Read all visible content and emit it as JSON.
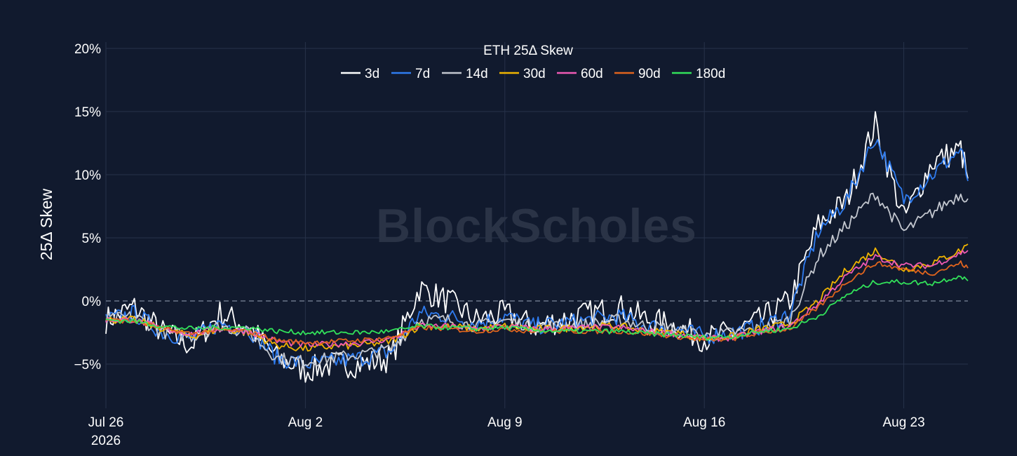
{
  "chart_data": {
    "type": "line",
    "title": "ETH 25Δ Skew",
    "ylabel": "25Δ Skew",
    "xlabel": "",
    "watermark": "BlockScholes",
    "x_range": [
      "2026-07-26",
      "2026-08-25T06:00"
    ],
    "ylim": [
      -0.085,
      0.205
    ],
    "y_ticks": [
      {
        "value": 0.2,
        "label": "20%"
      },
      {
        "value": 0.15,
        "label": "15%"
      },
      {
        "value": 0.1,
        "label": "10%"
      },
      {
        "value": 0.05,
        "label": "5%"
      },
      {
        "value": 0.0,
        "label": "0%"
      },
      {
        "value": -0.05,
        "label": "−5%"
      }
    ],
    "x_ticks": [
      {
        "date": "2026-07-26",
        "label": "Jul 26",
        "label2": "2026"
      },
      {
        "date": "2026-08-02",
        "label": "Aug 2",
        "label2": ""
      },
      {
        "date": "2026-08-09",
        "label": "Aug 9",
        "label2": ""
      },
      {
        "date": "2026-08-16",
        "label": "Aug 16",
        "label2": ""
      },
      {
        "date": "2026-08-23",
        "label": "Aug 23",
        "label2": ""
      }
    ],
    "grid": true,
    "zero_line": "dashed",
    "legend_position": "top-center",
    "series": [
      {
        "name": "3d",
        "color": "#ffffff",
        "noise": 0.011,
        "x": [
          "2026-07-26",
          "2026-07-27",
          "2026-07-28",
          "2026-07-29",
          "2026-07-30",
          "2026-07-31",
          "2026-08-01",
          "2026-08-02",
          "2026-08-03",
          "2026-08-04",
          "2026-08-05",
          "2026-08-06",
          "2026-08-07",
          "2026-08-08",
          "2026-08-09",
          "2026-08-10",
          "2026-08-11",
          "2026-08-12",
          "2026-08-13",
          "2026-08-14",
          "2026-08-15",
          "2026-08-16",
          "2026-08-17",
          "2026-08-18",
          "2026-08-19",
          "2026-08-20",
          "2026-08-21",
          "2026-08-22",
          "2026-08-23",
          "2026-08-24",
          "2026-08-25",
          "2026-08-25T06:00"
        ],
        "y": [
          -0.015,
          -0.005,
          -0.025,
          -0.035,
          -0.01,
          -0.02,
          -0.045,
          -0.055,
          -0.05,
          -0.05,
          -0.045,
          0.01,
          0.0,
          -0.015,
          -0.01,
          -0.02,
          -0.015,
          -0.01,
          -0.005,
          -0.015,
          -0.02,
          -0.03,
          -0.025,
          -0.015,
          0.0,
          0.06,
          0.08,
          0.14,
          0.065,
          0.11,
          0.12,
          0.097
        ]
      },
      {
        "name": "7d",
        "color": "#2f7cf0",
        "noise": 0.007,
        "x": [
          "2026-07-26",
          "2026-07-27",
          "2026-07-28",
          "2026-07-29",
          "2026-07-30",
          "2026-07-31",
          "2026-08-01",
          "2026-08-02",
          "2026-08-03",
          "2026-08-04",
          "2026-08-05",
          "2026-08-06",
          "2026-08-07",
          "2026-08-08",
          "2026-08-09",
          "2026-08-10",
          "2026-08-11",
          "2026-08-12",
          "2026-08-13",
          "2026-08-14",
          "2026-08-15",
          "2026-08-16",
          "2026-08-17",
          "2026-08-18",
          "2026-08-19",
          "2026-08-20",
          "2026-08-21",
          "2026-08-22",
          "2026-08-23",
          "2026-08-24",
          "2026-08-25",
          "2026-08-25T06:00"
        ],
        "y": [
          -0.015,
          -0.01,
          -0.025,
          -0.03,
          -0.018,
          -0.022,
          -0.045,
          -0.05,
          -0.048,
          -0.045,
          -0.04,
          -0.01,
          -0.012,
          -0.018,
          -0.012,
          -0.02,
          -0.018,
          -0.015,
          -0.012,
          -0.02,
          -0.022,
          -0.028,
          -0.025,
          -0.02,
          -0.01,
          0.055,
          0.08,
          0.13,
          0.08,
          0.1,
          0.12,
          0.095
        ]
      },
      {
        "name": "14d",
        "color": "#c3c7cf",
        "noise": 0.005,
        "x": [
          "2026-07-26",
          "2026-07-27",
          "2026-07-28",
          "2026-07-29",
          "2026-07-30",
          "2026-07-31",
          "2026-08-01",
          "2026-08-02",
          "2026-08-03",
          "2026-08-04",
          "2026-08-05",
          "2026-08-06",
          "2026-08-07",
          "2026-08-08",
          "2026-08-09",
          "2026-08-10",
          "2026-08-11",
          "2026-08-12",
          "2026-08-13",
          "2026-08-14",
          "2026-08-15",
          "2026-08-16",
          "2026-08-17",
          "2026-08-18",
          "2026-08-19",
          "2026-08-20",
          "2026-08-21",
          "2026-08-22",
          "2026-08-23",
          "2026-08-24",
          "2026-08-25",
          "2026-08-25T06:00"
        ],
        "y": [
          -0.015,
          -0.012,
          -0.025,
          -0.028,
          -0.02,
          -0.025,
          -0.045,
          -0.048,
          -0.045,
          -0.042,
          -0.038,
          -0.015,
          -0.015,
          -0.02,
          -0.015,
          -0.02,
          -0.02,
          -0.018,
          -0.015,
          -0.02,
          -0.022,
          -0.028,
          -0.025,
          -0.022,
          -0.015,
          0.035,
          0.06,
          0.085,
          0.055,
          0.07,
          0.085,
          0.081
        ]
      },
      {
        "name": "30d",
        "color": "#f0b400",
        "noise": 0.003,
        "x": [
          "2026-07-26",
          "2026-07-27",
          "2026-07-28",
          "2026-07-29",
          "2026-07-30",
          "2026-07-31",
          "2026-08-01",
          "2026-08-02",
          "2026-08-03",
          "2026-08-04",
          "2026-08-05",
          "2026-08-06",
          "2026-08-07",
          "2026-08-08",
          "2026-08-09",
          "2026-08-10",
          "2026-08-11",
          "2026-08-12",
          "2026-08-13",
          "2026-08-14",
          "2026-08-15",
          "2026-08-16",
          "2026-08-17",
          "2026-08-18",
          "2026-08-19",
          "2026-08-20",
          "2026-08-21",
          "2026-08-22",
          "2026-08-23",
          "2026-08-24",
          "2026-08-25",
          "2026-08-25T06:00"
        ],
        "y": [
          -0.015,
          -0.015,
          -0.022,
          -0.028,
          -0.022,
          -0.025,
          -0.035,
          -0.038,
          -0.036,
          -0.035,
          -0.032,
          -0.02,
          -0.02,
          -0.022,
          -0.02,
          -0.022,
          -0.022,
          -0.02,
          -0.02,
          -0.024,
          -0.025,
          -0.03,
          -0.028,
          -0.022,
          -0.018,
          0.0,
          0.025,
          0.04,
          0.025,
          0.03,
          0.04,
          0.045
        ]
      },
      {
        "name": "60d",
        "color": "#f05ab4",
        "noise": 0.0025,
        "x": [
          "2026-07-26",
          "2026-07-27",
          "2026-07-28",
          "2026-07-29",
          "2026-07-30",
          "2026-07-31",
          "2026-08-01",
          "2026-08-02",
          "2026-08-03",
          "2026-08-04",
          "2026-08-05",
          "2026-08-06",
          "2026-08-07",
          "2026-08-08",
          "2026-08-09",
          "2026-08-10",
          "2026-08-11",
          "2026-08-12",
          "2026-08-13",
          "2026-08-14",
          "2026-08-15",
          "2026-08-16",
          "2026-08-17",
          "2026-08-18",
          "2026-08-19",
          "2026-08-20",
          "2026-08-21",
          "2026-08-22",
          "2026-08-23",
          "2026-08-24",
          "2026-08-25",
          "2026-08-25T06:00"
        ],
        "y": [
          -0.015,
          -0.015,
          -0.022,
          -0.026,
          -0.022,
          -0.024,
          -0.032,
          -0.035,
          -0.034,
          -0.033,
          -0.03,
          -0.02,
          -0.02,
          -0.022,
          -0.02,
          -0.022,
          -0.022,
          -0.021,
          -0.021,
          -0.024,
          -0.026,
          -0.03,
          -0.029,
          -0.024,
          -0.02,
          -0.002,
          0.02,
          0.035,
          0.028,
          0.028,
          0.038,
          0.04
        ]
      },
      {
        "name": "90d",
        "color": "#e0641e",
        "noise": 0.002,
        "x": [
          "2026-07-26",
          "2026-07-27",
          "2026-07-28",
          "2026-07-29",
          "2026-07-30",
          "2026-07-31",
          "2026-08-01",
          "2026-08-02",
          "2026-08-03",
          "2026-08-04",
          "2026-08-05",
          "2026-08-06",
          "2026-08-07",
          "2026-08-08",
          "2026-08-09",
          "2026-08-10",
          "2026-08-11",
          "2026-08-12",
          "2026-08-13",
          "2026-08-14",
          "2026-08-15",
          "2026-08-16",
          "2026-08-17",
          "2026-08-18",
          "2026-08-19",
          "2026-08-20",
          "2026-08-21",
          "2026-08-22",
          "2026-08-23",
          "2026-08-24",
          "2026-08-25",
          "2026-08-25T06:00"
        ],
        "y": [
          -0.015,
          -0.016,
          -0.022,
          -0.026,
          -0.023,
          -0.024,
          -0.031,
          -0.033,
          -0.032,
          -0.031,
          -0.029,
          -0.021,
          -0.022,
          -0.024,
          -0.022,
          -0.024,
          -0.024,
          -0.024,
          -0.024,
          -0.026,
          -0.028,
          -0.031,
          -0.03,
          -0.025,
          -0.022,
          -0.005,
          0.015,
          0.03,
          0.025,
          0.022,
          0.03,
          0.026
        ]
      },
      {
        "name": "180d",
        "color": "#32e25a",
        "noise": 0.002,
        "x": [
          "2026-07-26",
          "2026-07-27",
          "2026-07-28",
          "2026-07-29",
          "2026-07-30",
          "2026-07-31",
          "2026-08-01",
          "2026-08-02",
          "2026-08-03",
          "2026-08-04",
          "2026-08-05",
          "2026-08-06",
          "2026-08-07",
          "2026-08-08",
          "2026-08-09",
          "2026-08-10",
          "2026-08-11",
          "2026-08-12",
          "2026-08-13",
          "2026-08-14",
          "2026-08-15",
          "2026-08-16",
          "2026-08-17",
          "2026-08-18",
          "2026-08-19",
          "2026-08-20",
          "2026-08-21",
          "2026-08-22",
          "2026-08-23",
          "2026-08-24",
          "2026-08-25",
          "2026-08-25T06:00"
        ],
        "y": [
          -0.015,
          -0.016,
          -0.02,
          -0.022,
          -0.021,
          -0.021,
          -0.024,
          -0.025,
          -0.025,
          -0.025,
          -0.024,
          -0.02,
          -0.021,
          -0.022,
          -0.021,
          -0.023,
          -0.024,
          -0.024,
          -0.024,
          -0.026,
          -0.027,
          -0.029,
          -0.028,
          -0.024,
          -0.022,
          -0.012,
          0.005,
          0.015,
          0.015,
          0.014,
          0.02,
          0.016
        ]
      }
    ]
  }
}
